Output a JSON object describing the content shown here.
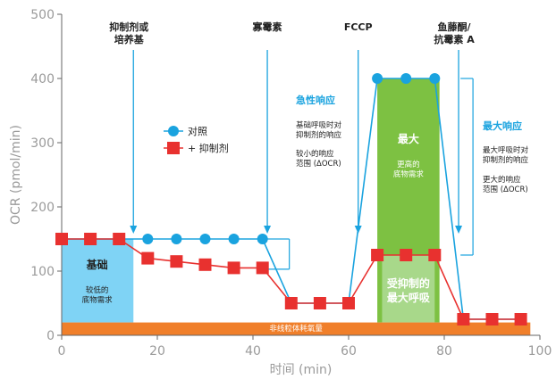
{
  "chart_data": {
    "type": "line",
    "xlabel": "时间 (min)",
    "ylabel": "OCR (pmol/min)",
    "xlim": [
      0,
      100
    ],
    "ylim": [
      0,
      500
    ],
    "xticks": [
      "0",
      "20",
      "40",
      "60",
      "80",
      "100"
    ],
    "yticks": [
      "0",
      "100",
      "200",
      "300",
      "400",
      "500"
    ],
    "legend_position": "center-left",
    "series": [
      {
        "name": "对照",
        "color": "#1aa3df",
        "marker": "circle",
        "x": [
          0,
          6,
          12,
          18,
          24,
          30,
          36,
          42,
          48,
          54,
          60,
          66,
          72,
          78,
          84,
          90,
          96
        ],
        "y": [
          150,
          150,
          150,
          150,
          150,
          150,
          150,
          150,
          50,
          50,
          50,
          400,
          400,
          400,
          25,
          25,
          25
        ]
      },
      {
        "name": "+ 抑制剂",
        "color": "#e8312f",
        "marker": "square",
        "x": [
          0,
          6,
          12,
          18,
          24,
          30,
          36,
          42,
          48,
          54,
          60,
          66,
          72,
          78,
          84,
          90,
          96
        ],
        "y": [
          150,
          150,
          150,
          120,
          115,
          110,
          105,
          105,
          50,
          50,
          50,
          125,
          125,
          125,
          25,
          25,
          25
        ]
      }
    ],
    "injections": [
      {
        "x": 15,
        "lines": [
          "抑制剂或",
          "培养基"
        ]
      },
      {
        "x": 43,
        "lines": [
          "寡霉素"
        ]
      },
      {
        "x": 62,
        "lines": [
          "FCCP"
        ]
      },
      {
        "x": 83,
        "lines": [
          "鱼藤酮/",
          "抗霉素 A"
        ]
      }
    ],
    "regions": {
      "nonmito": {
        "x0": 0,
        "x1": 98,
        "y0": 0,
        "y1": 20,
        "label": "非线粒体耗氧量",
        "color": "#f07f2a"
      },
      "basal": {
        "x0": 0,
        "x1": 15,
        "y0": 20,
        "y1": 150,
        "label": "基础",
        "sublines": [
          "较低的",
          "底物需求"
        ],
        "color": "#7fd3f5"
      },
      "maximal": {
        "x0": 66,
        "x1": 79,
        "y0": 20,
        "y1": 400,
        "label": "最大",
        "sublines": [
          "更高的",
          "底物需求"
        ],
        "color": "#7dc142"
      },
      "inhibited_max": {
        "x0": 67,
        "x1": 78,
        "y0": 20,
        "y1": 125,
        "lines": [
          "受抑制的",
          "最大呼吸"
        ],
        "color": "#a8d88a"
      }
    },
    "annotations": {
      "acute": {
        "title": "急性响应",
        "lines1": [
          "基础呼吸时对",
          "抑制剂的响应"
        ],
        "lines2": [
          "较小的响应",
          "范围 (ΔOCR)"
        ]
      },
      "maximal": {
        "title": "最大响应",
        "lines1": [
          "最大呼吸时对",
          "抑制剂的响应"
        ],
        "lines2": [
          "更大的响应",
          "范围 (ΔOCR)"
        ]
      }
    }
  }
}
